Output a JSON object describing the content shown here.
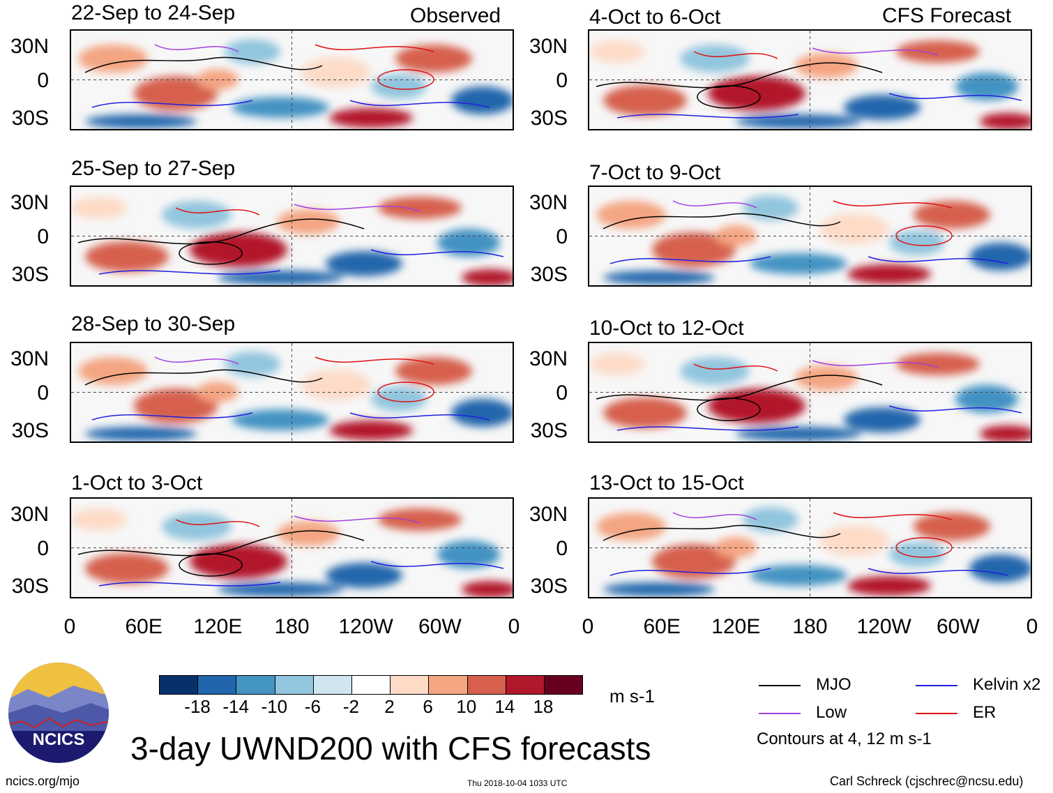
{
  "observed_label": "Observed",
  "forecast_label": "CFS Forecast",
  "panels_left": [
    {
      "period": "22-Sep to 24-Sep"
    },
    {
      "period": "25-Sep to 27-Sep"
    },
    {
      "period": "28-Sep to 30-Sep"
    },
    {
      "period": "1-Oct to 3-Oct"
    }
  ],
  "panels_right": [
    {
      "period": "4-Oct to 6-Oct"
    },
    {
      "period": "7-Oct to 9-Oct"
    },
    {
      "period": "10-Oct to 12-Oct"
    },
    {
      "period": "13-Oct to 15-Oct"
    }
  ],
  "lat_labels": [
    "30N",
    "0",
    "30S"
  ],
  "lon_labels": [
    "0",
    "60E",
    "120E",
    "180",
    "120W",
    "60W",
    "0"
  ],
  "colorbar": {
    "ticks": [
      "-18",
      "-14",
      "-10",
      "-6",
      "-2",
      "2",
      "6",
      "10",
      "14",
      "18"
    ],
    "colors": [
      "#08306b",
      "#2166ac",
      "#4393c3",
      "#92c5de",
      "#d1e5f0",
      "#ffffff",
      "#fddbc7",
      "#f4a582",
      "#d6604d",
      "#b2182b",
      "#67001f"
    ],
    "units": "m s-1"
  },
  "legend": {
    "items": [
      {
        "label": "MJO",
        "color": "#000000"
      },
      {
        "label": "Kelvin x2",
        "color": "#1f1fe0"
      },
      {
        "label": "Low",
        "color": "#a040e0"
      },
      {
        "label": "ER",
        "color": "#e01010"
      }
    ],
    "note": "Contours at 4, 12 m s-1"
  },
  "main_title": "3-day UWND200 with CFS forecasts",
  "logo_text": "NCICS",
  "url": "ncics.org/mjo",
  "timestamp": "Thu 2018-10-04 1033 UTC",
  "author": "Carl Schreck (cjschrec@ncsu.edu)"
}
